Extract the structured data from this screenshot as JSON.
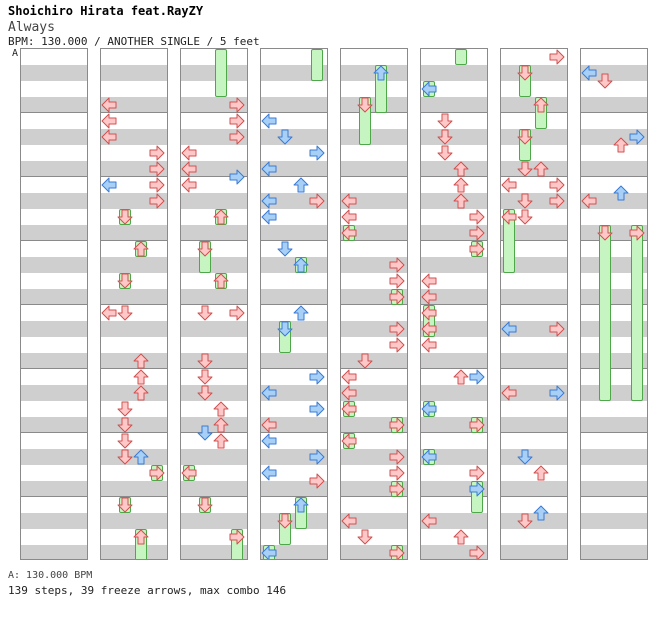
{
  "header": {
    "artist_line": "Shoichiro Hirata feat.RayZY",
    "song_title": "Always",
    "meta_line": "BPM: 130.000 / ANOTHER SINGLE / 5 feet",
    "section_marker": "A"
  },
  "footer": {
    "bpm_line": "A: 130.000 BPM",
    "stats_line": "139 steps, 39 freeze arrows, max combo 146"
  },
  "colors": {
    "red_fill": "#ffc8c8",
    "red_stroke": "#d05050",
    "blue_fill": "#a8cff5",
    "blue_stroke": "#3a7bd5",
    "freeze_fill": "#c7f5c2",
    "freeze_stroke": "#4ea84a"
  },
  "chart_data": {
    "type": "stepchart",
    "lanes": [
      "left",
      "down",
      "up",
      "right"
    ],
    "rows_per_column": 32,
    "columns": [
      {
        "arrows": [],
        "freezes": []
      },
      {
        "arrows": [
          [
            "left",
            3,
            "red"
          ],
          [
            "left",
            4,
            "red"
          ],
          [
            "left",
            5,
            "red"
          ],
          [
            "right",
            6,
            "red"
          ],
          [
            "right",
            7,
            "red"
          ],
          [
            "right",
            8,
            "red"
          ],
          [
            "right",
            9,
            "red"
          ],
          [
            "left",
            8,
            "blue"
          ],
          [
            "down",
            10,
            "red"
          ],
          [
            "up",
            12,
            "red"
          ],
          [
            "down",
            14,
            "red"
          ],
          [
            "left",
            16,
            "red"
          ],
          [
            "down",
            16,
            "red"
          ],
          [
            "up",
            19,
            "red"
          ],
          [
            "up",
            20,
            "red"
          ],
          [
            "up",
            21,
            "red"
          ],
          [
            "down",
            22,
            "red"
          ],
          [
            "down",
            23,
            "red"
          ],
          [
            "down",
            24,
            "red"
          ],
          [
            "down",
            25,
            "red"
          ],
          [
            "up",
            25,
            "blue"
          ],
          [
            "right",
            26,
            "red"
          ],
          [
            "down",
            28,
            "red"
          ],
          [
            "up",
            30,
            "red"
          ]
        ],
        "freezes": [
          [
            "down",
            10,
            11
          ],
          [
            "up",
            12,
            13
          ],
          [
            "down",
            14,
            15
          ],
          [
            "right",
            26,
            27
          ],
          [
            "down",
            28,
            29
          ],
          [
            "up",
            30,
            32
          ]
        ]
      },
      {
        "arrows": [
          [
            "right",
            3,
            "red"
          ],
          [
            "right",
            4,
            "red"
          ],
          [
            "right",
            5,
            "red"
          ],
          [
            "left",
            6,
            "red"
          ],
          [
            "left",
            7,
            "red"
          ],
          [
            "left",
            8,
            "red"
          ],
          [
            "right",
            7.5,
            "blue"
          ],
          [
            "up",
            10,
            "red"
          ],
          [
            "down",
            12,
            "red"
          ],
          [
            "up",
            14,
            "red"
          ],
          [
            "down",
            16,
            "red"
          ],
          [
            "right",
            16,
            "red"
          ],
          [
            "down",
            19,
            "red"
          ],
          [
            "down",
            20,
            "red"
          ],
          [
            "down",
            21,
            "red"
          ],
          [
            "up",
            22,
            "red"
          ],
          [
            "up",
            23,
            "red"
          ],
          [
            "down",
            23.5,
            "blue"
          ],
          [
            "up",
            24,
            "red"
          ],
          [
            "left",
            26,
            "red"
          ],
          [
            "down",
            28,
            "red"
          ],
          [
            "right",
            30,
            "red"
          ]
        ],
        "freezes": [
          [
            "up",
            0,
            3
          ],
          [
            "up",
            10,
            11
          ],
          [
            "down",
            12,
            14
          ],
          [
            "up",
            14,
            15
          ],
          [
            "left",
            26,
            27
          ],
          [
            "down",
            28,
            29
          ],
          [
            "right",
            30,
            32
          ]
        ]
      },
      {
        "arrows": [
          [
            "left",
            4,
            "blue"
          ],
          [
            "down",
            5,
            "blue"
          ],
          [
            "right",
            6,
            "blue"
          ],
          [
            "left",
            7,
            "blue"
          ],
          [
            "up",
            8,
            "blue"
          ],
          [
            "left",
            9,
            "blue"
          ],
          [
            "left",
            10,
            "blue"
          ],
          [
            "right",
            9,
            "red"
          ],
          [
            "down",
            12,
            "blue"
          ],
          [
            "up",
            13,
            "blue"
          ],
          [
            "up",
            16,
            "blue"
          ],
          [
            "down",
            17,
            "blue"
          ],
          [
            "right",
            20,
            "blue"
          ],
          [
            "left",
            21,
            "blue"
          ],
          [
            "right",
            22,
            "blue"
          ],
          [
            "left",
            23,
            "red"
          ],
          [
            "left",
            24,
            "blue"
          ],
          [
            "right",
            25,
            "blue"
          ],
          [
            "left",
            26,
            "blue"
          ],
          [
            "right",
            26.5,
            "red"
          ],
          [
            "up",
            28,
            "blue"
          ],
          [
            "down",
            29,
            "red"
          ],
          [
            "left",
            31,
            "blue"
          ]
        ],
        "freezes": [
          [
            "right",
            0,
            2
          ],
          [
            "up",
            13,
            14
          ],
          [
            "down",
            17,
            19
          ],
          [
            "up",
            28,
            30
          ],
          [
            "down",
            29,
            31
          ],
          [
            "left",
            31,
            32
          ]
        ]
      },
      {
        "arrows": [
          [
            "up",
            1,
            "blue"
          ],
          [
            "down",
            3,
            "red"
          ],
          [
            "left",
            9,
            "red"
          ],
          [
            "left",
            10,
            "red"
          ],
          [
            "left",
            11,
            "red"
          ],
          [
            "right",
            13,
            "red"
          ],
          [
            "right",
            14,
            "red"
          ],
          [
            "right",
            15,
            "red"
          ],
          [
            "right",
            17,
            "red"
          ],
          [
            "right",
            18,
            "red"
          ],
          [
            "down",
            19,
            "red"
          ],
          [
            "left",
            20,
            "red"
          ],
          [
            "left",
            21,
            "red"
          ],
          [
            "left",
            22,
            "red"
          ],
          [
            "left",
            24,
            "red"
          ],
          [
            "right",
            23,
            "red"
          ],
          [
            "right",
            25,
            "red"
          ],
          [
            "right",
            26,
            "red"
          ],
          [
            "right",
            27,
            "red"
          ],
          [
            "left",
            29,
            "red"
          ],
          [
            "down",
            30,
            "red"
          ],
          [
            "right",
            31,
            "red"
          ]
        ],
        "freezes": [
          [
            "up",
            1,
            4
          ],
          [
            "down",
            3,
            6
          ],
          [
            "left",
            11,
            12
          ],
          [
            "right",
            15,
            16
          ],
          [
            "left",
            22,
            23
          ],
          [
            "left",
            24,
            25
          ],
          [
            "right",
            23,
            24
          ],
          [
            "right",
            27,
            28
          ],
          [
            "right",
            31,
            32
          ]
        ]
      },
      {
        "arrows": [
          [
            "left",
            2,
            "blue"
          ],
          [
            "down",
            4,
            "red"
          ],
          [
            "down",
            5,
            "red"
          ],
          [
            "down",
            6,
            "red"
          ],
          [
            "up",
            7,
            "red"
          ],
          [
            "up",
            8,
            "red"
          ],
          [
            "up",
            9,
            "red"
          ],
          [
            "right",
            10,
            "red"
          ],
          [
            "right",
            11,
            "red"
          ],
          [
            "right",
            12,
            "red"
          ],
          [
            "left",
            14,
            "red"
          ],
          [
            "left",
            15,
            "red"
          ],
          [
            "left",
            16,
            "red"
          ],
          [
            "left",
            17,
            "red"
          ],
          [
            "left",
            18,
            "red"
          ],
          [
            "up",
            20,
            "red"
          ],
          [
            "right",
            20,
            "blue"
          ],
          [
            "left",
            22,
            "blue"
          ],
          [
            "right",
            23,
            "red"
          ],
          [
            "left",
            25,
            "blue"
          ],
          [
            "right",
            26,
            "red"
          ],
          [
            "right",
            27,
            "blue"
          ],
          [
            "left",
            29,
            "red"
          ],
          [
            "up",
            30,
            "red"
          ],
          [
            "right",
            31,
            "red"
          ],
          [
            "left",
            32,
            "blue"
          ]
        ],
        "freezes": [
          [
            "up",
            0,
            1
          ],
          [
            "left",
            2,
            3
          ],
          [
            "right",
            12,
            13
          ],
          [
            "left",
            16,
            18
          ],
          [
            "left",
            22,
            23
          ],
          [
            "right",
            23,
            24
          ],
          [
            "left",
            25,
            26
          ],
          [
            "right",
            27,
            29
          ]
        ]
      },
      {
        "arrows": [
          [
            "right",
            0,
            "red"
          ],
          [
            "down",
            1,
            "red"
          ],
          [
            "up",
            3,
            "red"
          ],
          [
            "down",
            5,
            "red"
          ],
          [
            "down",
            7,
            "red"
          ],
          [
            "up",
            7,
            "red"
          ],
          [
            "left",
            8,
            "red"
          ],
          [
            "right",
            8,
            "red"
          ],
          [
            "down",
            9,
            "red"
          ],
          [
            "right",
            9,
            "red"
          ],
          [
            "left",
            10,
            "red"
          ],
          [
            "down",
            10,
            "red"
          ],
          [
            "left",
            17,
            "blue"
          ],
          [
            "right",
            17,
            "red"
          ],
          [
            "left",
            21,
            "red"
          ],
          [
            "right",
            21,
            "blue"
          ],
          [
            "down",
            25,
            "blue"
          ],
          [
            "up",
            26,
            "red"
          ],
          [
            "down",
            29,
            "red"
          ],
          [
            "up",
            28.5,
            "blue"
          ]
        ],
        "freezes": [
          [
            "down",
            1,
            3
          ],
          [
            "up",
            3,
            5
          ],
          [
            "down",
            5,
            7
          ],
          [
            "left",
            10,
            14
          ]
        ]
      },
      {
        "arrows": [
          [
            "left",
            1,
            "blue"
          ],
          [
            "down",
            1.5,
            "red"
          ],
          [
            "right",
            5,
            "blue"
          ],
          [
            "up",
            5.5,
            "red"
          ],
          [
            "left",
            9,
            "red"
          ],
          [
            "up",
            8.5,
            "blue"
          ],
          [
            "down",
            11,
            "red"
          ],
          [
            "right",
            11,
            "red"
          ]
        ],
        "freezes": [
          [
            "down",
            11,
            22
          ],
          [
            "right",
            11,
            22
          ]
        ]
      }
    ]
  }
}
